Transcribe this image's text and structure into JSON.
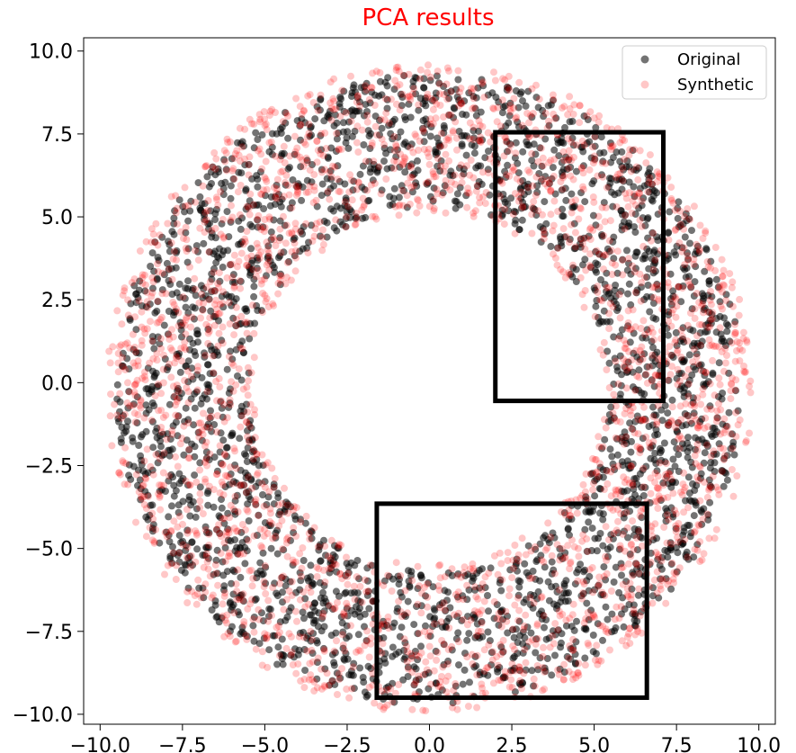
{
  "chart_data": {
    "type": "scatter",
    "title": "PCA results",
    "title_color": "#ff0000",
    "xlabel": "",
    "ylabel": "",
    "xlim": [
      -10.5,
      10.5
    ],
    "ylim": [
      -10.3,
      10.4
    ],
    "x_ticks": [
      -10.0,
      -7.5,
      -5.0,
      -2.5,
      0.0,
      2.5,
      5.0,
      7.5,
      10.0
    ],
    "y_ticks": [
      -10.0,
      -7.5,
      -5.0,
      -2.5,
      0.0,
      2.5,
      5.0,
      7.5,
      10.0
    ],
    "x_tick_labels": [
      "−10.0",
      "−7.5",
      "−5.0",
      "−2.5",
      "0.0",
      "2.5",
      "5.0",
      "7.5",
      "10.0"
    ],
    "y_tick_labels": [
      "10.0",
      "7.5",
      "5.0",
      "2.5",
      "0.0",
      "−2.5",
      "−5.0",
      "−7.5",
      "−10.0"
    ],
    "grid": false,
    "legend_position": "top-right",
    "series": [
      {
        "name": "Original",
        "color": "#000000",
        "alpha": 0.55,
        "shape": "ring",
        "inner_radius": 5.5,
        "outer_radius": 9.5,
        "center": [
          0.0,
          -0.2
        ],
        "point_count": 2500
      },
      {
        "name": "Synthetic",
        "color": "#ff0000",
        "alpha": 0.22,
        "shape": "ring",
        "inner_radius": 5.3,
        "outer_radius": 9.8,
        "center": [
          0.0,
          -0.2
        ],
        "point_count": 2500
      }
    ],
    "annotations": [
      {
        "type": "rectangle",
        "x0": 2.0,
        "x1": 7.1,
        "y0": -0.55,
        "y1": 7.55,
        "color": "#000000"
      },
      {
        "type": "rectangle",
        "x0": -1.6,
        "x1": 6.6,
        "y0": -9.5,
        "y1": -3.65,
        "color": "#000000"
      }
    ]
  }
}
